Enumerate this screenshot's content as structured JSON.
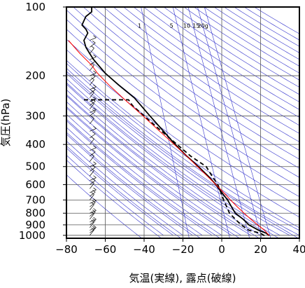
{
  "chart_data": {
    "type": "line",
    "subtype": "emagram (log-pressure thermodynamic diagram)",
    "title": "",
    "xlabel": "気温(実線), 露点(破線)",
    "ylabel": "気圧(hPa)",
    "xlim": [
      -80,
      40
    ],
    "ylim": [
      1030,
      100
    ],
    "y_scale": "log",
    "x_ticks": [
      "−80",
      "−60",
      "−40",
      "−20",
      "0",
      "20",
      "40"
    ],
    "x_tick_values": [
      -80,
      -60,
      -40,
      -20,
      0,
      20,
      40
    ],
    "y_ticks": [
      "100",
      "200",
      "300",
      "400",
      "500",
      "600",
      "700",
      "800",
      "900",
      "1000"
    ],
    "y_tick_values": [
      100,
      200,
      300,
      400,
      500,
      600,
      700,
      800,
      900,
      1000
    ],
    "grid": true,
    "mixing_ratio_labels": [
      "1",
      "5",
      "10",
      "15",
      "20g"
    ],
    "mixing_ratio_values_gkg": [
      1,
      5,
      10,
      15,
      20
    ],
    "colors": {
      "temperature": "#000000",
      "dewpoint": "#000000",
      "parcel": "#ff0000",
      "background_lines": "#3333cc",
      "grid": "#555555"
    },
    "series": [
      {
        "role": "temperature",
        "style": "solid",
        "points": [
          [
            24.5,
            1003
          ],
          [
            23,
            980
          ],
          [
            19,
            950
          ],
          [
            14,
            900
          ],
          [
            11,
            850
          ],
          [
            7,
            800
          ],
          [
            5,
            750
          ],
          [
            3,
            700
          ],
          [
            0,
            650
          ],
          [
            -3,
            600
          ],
          [
            -7,
            550
          ],
          [
            -12,
            500
          ],
          [
            -18,
            450
          ],
          [
            -24,
            400
          ],
          [
            -30,
            350
          ],
          [
            -37,
            300
          ],
          [
            -45,
            250
          ],
          [
            -53,
            220
          ],
          [
            -60,
            195
          ],
          [
            -66,
            170
          ],
          [
            -68,
            160
          ],
          [
            -70,
            150
          ],
          [
            -71,
            140
          ],
          [
            -69,
            130
          ],
          [
            -70,
            125
          ],
          [
            -72,
            120
          ],
          [
            -70,
            110
          ],
          [
            -67,
            105
          ],
          [
            -67,
            100
          ]
        ]
      },
      {
        "role": "dewpoint",
        "style": "dashed",
        "points": [
          [
            22,
            1003
          ],
          [
            20,
            980
          ],
          [
            14,
            950
          ],
          [
            10,
            900
          ],
          [
            7,
            850
          ],
          [
            4,
            800
          ],
          [
            1,
            700
          ],
          [
            -2,
            600
          ],
          [
            -5,
            550
          ],
          [
            -8,
            500
          ],
          [
            -16,
            450
          ],
          [
            -23,
            400
          ],
          [
            -31,
            350
          ],
          [
            -40,
            300
          ],
          [
            -46,
            270
          ],
          [
            -48,
            255
          ],
          [
            -72,
            255
          ]
        ]
      },
      {
        "role": "parcel",
        "style": "solid",
        "points": [
          [
            24.5,
            1003
          ],
          [
            22,
            950
          ],
          [
            18.5,
            900
          ],
          [
            15,
            850
          ],
          [
            11.5,
            800
          ],
          [
            8,
            750
          ],
          [
            4.5,
            700
          ],
          [
            1,
            650
          ],
          [
            -3,
            600
          ],
          [
            -7.5,
            550
          ],
          [
            -12.5,
            500
          ],
          [
            -18,
            450
          ],
          [
            -24.5,
            400
          ],
          [
            -32,
            350
          ],
          [
            -40.5,
            300
          ],
          [
            -51,
            250
          ],
          [
            -58,
            220
          ],
          [
            -64,
            195
          ],
          [
            -67,
            180
          ],
          [
            -73,
            160
          ],
          [
            -79,
            140
          ]
        ]
      }
    ],
    "wind_barbs": {
      "x_position_temperature": -68,
      "pressure_levels": [
        1000,
        975,
        950,
        925,
        900,
        875,
        850,
        825,
        800,
        775,
        750,
        725,
        700,
        675,
        650,
        625,
        600,
        575,
        550,
        525,
        500,
        475,
        450,
        425,
        400,
        375,
        350,
        325,
        300,
        290,
        280,
        270,
        260,
        250,
        240,
        230,
        220,
        210,
        200,
        190,
        180,
        170,
        160,
        150,
        140
      ]
    }
  }
}
